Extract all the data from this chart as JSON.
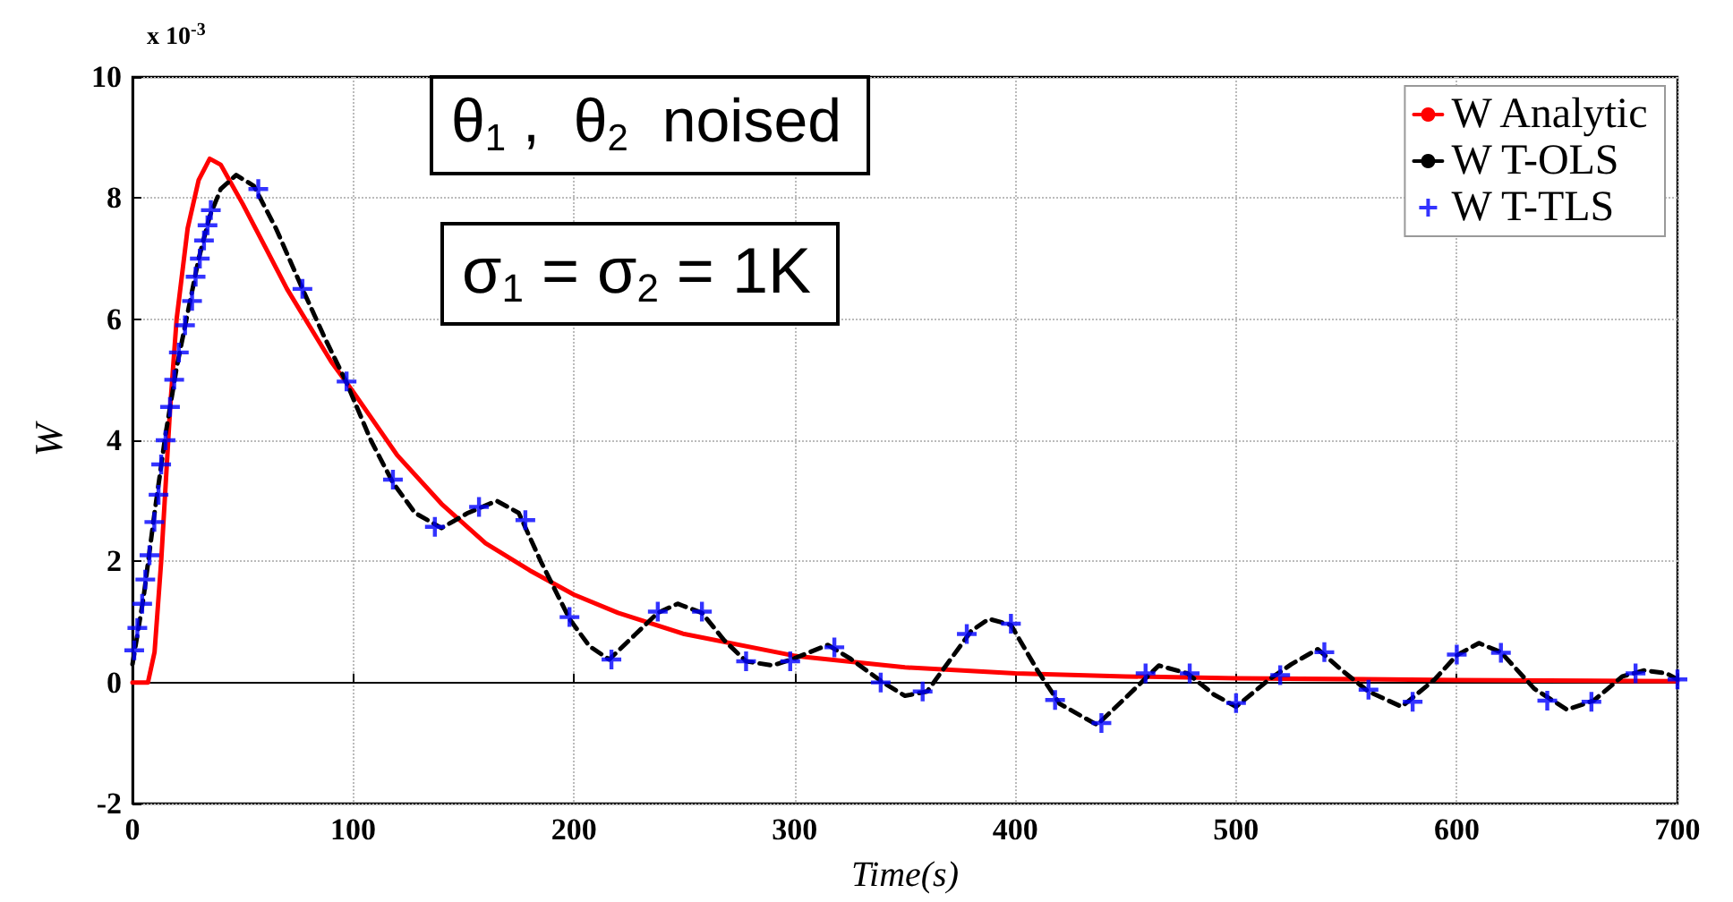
{
  "chart_data": {
    "type": "line",
    "xlabel": "Time(s)",
    "ylabel": "W",
    "annotations": [
      "x 10$^{-3}$",
      "θ$_{1}$ ,  θ$_{2}$  noised",
      "σ$_{1}$ = σ$_{2}$ = 1K"
    ],
    "xlim": [
      0,
      700
    ],
    "xticks": [
      0,
      100,
      200,
      300,
      400,
      500,
      600,
      700
    ],
    "ylim": [
      -2,
      10
    ],
    "yticks": [
      -2,
      0,
      2,
      4,
      6,
      8,
      10
    ],
    "grid": true,
    "legend": "top right",
    "series": [
      {
        "name": "W Analytic",
        "color": "#ff0000",
        "line_style": "solid",
        "marker": "none",
        "x": [
          0,
          7,
          10,
          13,
          17,
          20,
          25,
          30,
          35,
          40,
          50,
          60,
          70,
          80,
          90,
          100,
          120,
          140,
          160,
          180,
          200,
          220,
          250,
          300,
          350,
          400,
          450,
          500,
          600,
          700
        ],
        "values": [
          0,
          0,
          0.5,
          2,
          4.5,
          6,
          7.5,
          8.3,
          8.65,
          8.55,
          7.9,
          7.2,
          6.5,
          5.9,
          5.3,
          4.8,
          3.75,
          2.95,
          2.3,
          1.85,
          1.45,
          1.15,
          0.8,
          0.44,
          0.25,
          0.15,
          0.1,
          0.07,
          0.04,
          0.02
        ]
      },
      {
        "name": "W T-OLS",
        "color": "#000000",
        "line_style": "dashed",
        "marker": "none",
        "x": [
          0,
          5,
          10,
          15,
          20,
          25,
          30,
          35,
          40,
          47,
          55,
          65,
          77,
          87,
          97,
          108,
          118,
          128,
          140,
          152,
          165,
          175,
          185,
          198,
          207,
          216,
          228,
          238,
          247,
          258,
          268,
          278,
          290,
          300,
          315,
          325,
          340,
          350,
          360,
          370,
          380,
          388,
          398,
          410,
          420,
          437,
          450,
          465,
          478,
          490,
          500,
          515,
          525,
          537,
          548,
          560,
          575,
          590,
          600,
          610,
          620,
          635,
          650,
          662,
          675,
          685,
          695,
          700
        ],
        "values": [
          0.3,
          1.4,
          2.8,
          4.1,
          5.2,
          6.1,
          7,
          7.7,
          8.15,
          8.38,
          8.2,
          7.5,
          6.5,
          5.7,
          4.95,
          4,
          3.3,
          2.8,
          2.55,
          2.8,
          3,
          2.8,
          2,
          1.05,
          0.6,
          0.38,
          0.8,
          1.15,
          1.3,
          1.15,
          0.7,
          0.35,
          0.28,
          0.4,
          0.62,
          0.4,
          0,
          -0.22,
          -0.15,
          0.35,
          0.85,
          1.05,
          0.95,
          0.2,
          -0.35,
          -0.7,
          -0.25,
          0.28,
          0.15,
          -0.2,
          -0.4,
          0.05,
          0.3,
          0.55,
          0.2,
          -0.15,
          -0.4,
          0.05,
          0.45,
          0.65,
          0.5,
          -0.1,
          -0.45,
          -0.3,
          0.1,
          0.2,
          0.15,
          0.05
        ]
      },
      {
        "name": "W T-TLS",
        "type": "scatter",
        "color": "#0000ff",
        "marker": "cross",
        "x": [
          0.8,
          2.2,
          4.4,
          5.8,
          7.7,
          9.9,
          11.8,
          13,
          15,
          17,
          18.9,
          21,
          23.8,
          27,
          28.6,
          30.5,
          32.4,
          34,
          35.5,
          57,
          77,
          97,
          118,
          137,
          157,
          178,
          198,
          217,
          238,
          258,
          278,
          298,
          318,
          339,
          358,
          378,
          398,
          418,
          439,
          459,
          479,
          500,
          520,
          540,
          560,
          580,
          600,
          620,
          641,
          661,
          681,
          700
        ],
        "values": [
          0.53,
          0.9,
          1.3,
          1.7,
          2.1,
          2.65,
          3.1,
          3.6,
          4,
          4.55,
          5,
          5.45,
          5.9,
          6.3,
          6.7,
          7,
          7.3,
          7.55,
          7.8,
          8.15,
          6.5,
          4.97,
          3.35,
          2.57,
          2.9,
          2.68,
          1.08,
          0.38,
          1.17,
          1.17,
          0.35,
          0.35,
          0.58,
          0,
          -0.15,
          0.8,
          0.97,
          -0.29,
          -0.67,
          0.15,
          0.15,
          -0.34,
          0.12,
          0.5,
          -0.12,
          -0.32,
          0.46,
          0.49,
          -0.3,
          -0.32,
          0.15,
          0.05
        ]
      }
    ]
  }
}
